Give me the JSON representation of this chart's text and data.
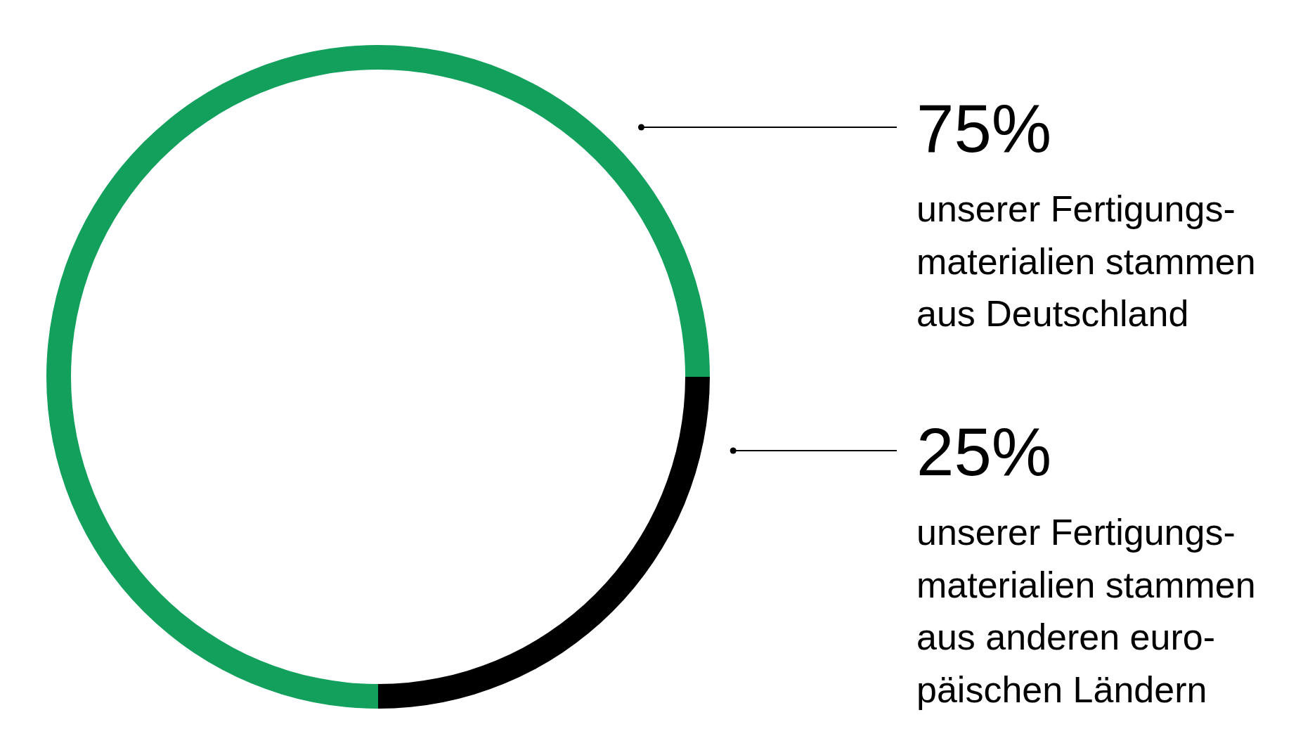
{
  "chart_data": {
    "type": "donut",
    "categories": [
      "unserer Fertigungs-\nmaterialien stammen\naus Deutschland",
      "unserer Fertigungs-\nmaterialien stammen\naus anderen euro-\npäischen Ländern"
    ],
    "values": [
      75,
      25
    ],
    "colors": [
      "#12a05c",
      "#000000"
    ],
    "value_labels": [
      "75%",
      "25%"
    ]
  }
}
